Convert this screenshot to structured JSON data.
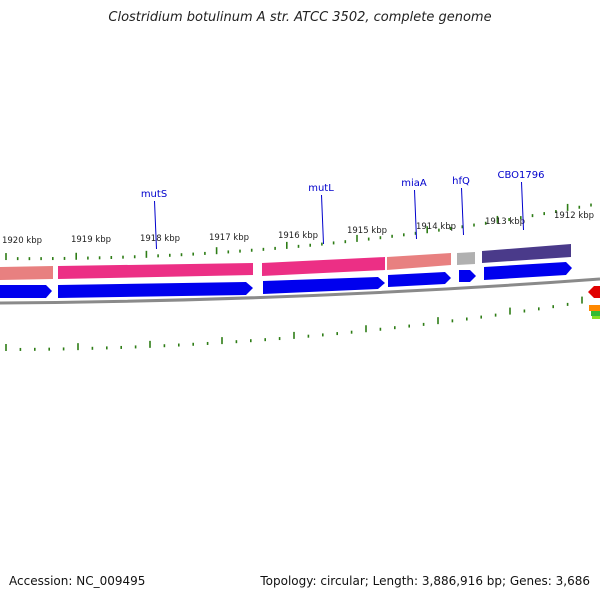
{
  "title": "Clostridium botulinum A str. ATCC 3502, complete genome",
  "footer": {
    "accession": "Accession: NC_009495",
    "info": "Topology: circular; Length: 3,886,916 bp; Genes: 3,686"
  },
  "ticks": [
    {
      "label": "1920 kbp"
    },
    {
      "label": "1919 kbp"
    },
    {
      "label": "1918 kbp"
    },
    {
      "label": "1917 kbp"
    },
    {
      "label": "1916 kbp"
    },
    {
      "label": "1915 kbp"
    },
    {
      "label": "1914 kbp"
    },
    {
      "label": "1913 kbp"
    },
    {
      "label": "1912 kbp"
    }
  ],
  "genes": [
    {
      "name": "mutS",
      "color": "#0000cc"
    },
    {
      "name": "mutL",
      "color": "#0000cc"
    },
    {
      "name": "miaA",
      "color": "#0000cc"
    },
    {
      "name": "hfQ",
      "color": "#0000cc"
    },
    {
      "name": "CBO1796",
      "color": "#0000cc"
    }
  ],
  "colors": {
    "cds": "#0000ee",
    "gene_pink": "#ec2f85",
    "gene_salmon": "#e88080",
    "gene_gray": "#b0b0b0",
    "gene_purple": "#4a3a8a",
    "backbone": "#8a8a8a",
    "tick": "#2e7d16",
    "label": "#0000cc"
  }
}
